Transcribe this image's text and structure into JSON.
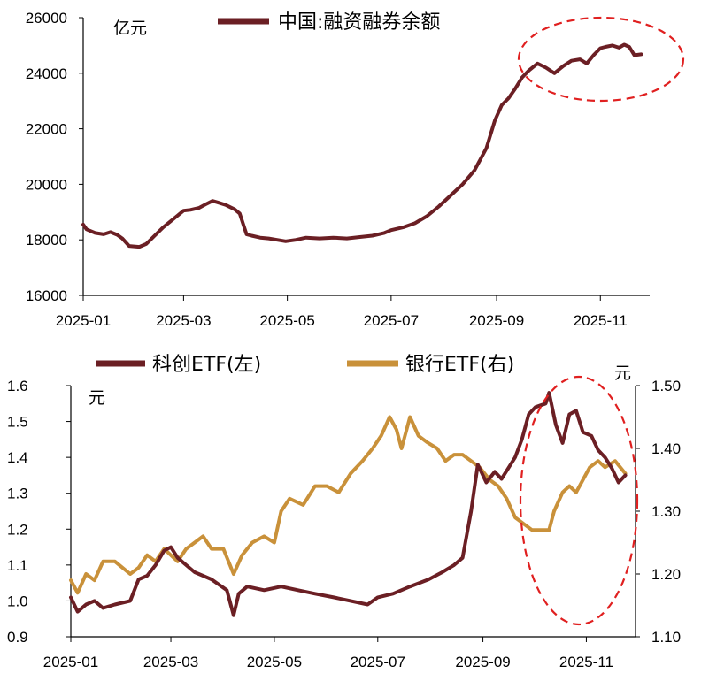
{
  "chart_data": [
    {
      "type": "line",
      "title": "",
      "ylabel_unit": "亿元",
      "ylim": [
        16000,
        26000
      ],
      "yticks": [
        "16000",
        "18000",
        "20000",
        "22000",
        "24000",
        "26000"
      ],
      "x_tick_labels": [
        "2025-01",
        "2025-03",
        "2025-05",
        "2025-07",
        "2025-09",
        "2025-11"
      ],
      "x_domain": [
        "2025-01-01",
        "2025-11-30"
      ],
      "legend_position": "top-center",
      "grid": false,
      "series": [
        {
          "name": "中国:融资融券余额",
          "color": "#6b1f24",
          "points": [
            [
              "2025-01-01",
              18550
            ],
            [
              "2025-01-03",
              18380
            ],
            [
              "2025-01-08",
              18250
            ],
            [
              "2025-01-13",
              18200
            ],
            [
              "2025-01-17",
              18280
            ],
            [
              "2025-01-21",
              18180
            ],
            [
              "2025-01-24",
              18050
            ],
            [
              "2025-01-28",
              17780
            ],
            [
              "2025-02-03",
              17750
            ],
            [
              "2025-02-07",
              17850
            ],
            [
              "2025-02-12",
              18150
            ],
            [
              "2025-02-17",
              18450
            ],
            [
              "2025-02-21",
              18650
            ],
            [
              "2025-02-25",
              18850
            ],
            [
              "2025-03-01",
              19050
            ],
            [
              "2025-03-05",
              19080
            ],
            [
              "2025-03-10",
              19150
            ],
            [
              "2025-03-14",
              19280
            ],
            [
              "2025-03-18",
              19400
            ],
            [
              "2025-03-21",
              19350
            ],
            [
              "2025-03-26",
              19250
            ],
            [
              "2025-03-31",
              19100
            ],
            [
              "2025-04-03",
              18950
            ],
            [
              "2025-04-07",
              18200
            ],
            [
              "2025-04-10",
              18150
            ],
            [
              "2025-04-15",
              18080
            ],
            [
              "2025-04-20",
              18050
            ],
            [
              "2025-04-25",
              18000
            ],
            [
              "2025-04-30",
              17950
            ],
            [
              "2025-05-06",
              18000
            ],
            [
              "2025-05-12",
              18080
            ],
            [
              "2025-05-20",
              18050
            ],
            [
              "2025-05-28",
              18080
            ],
            [
              "2025-06-05",
              18050
            ],
            [
              "2025-06-12",
              18100
            ],
            [
              "2025-06-20",
              18150
            ],
            [
              "2025-06-27",
              18250
            ],
            [
              "2025-07-01",
              18350
            ],
            [
              "2025-07-08",
              18450
            ],
            [
              "2025-07-15",
              18600
            ],
            [
              "2025-07-22",
              18850
            ],
            [
              "2025-07-29",
              19200
            ],
            [
              "2025-08-05",
              19600
            ],
            [
              "2025-08-12",
              20000
            ],
            [
              "2025-08-19",
              20500
            ],
            [
              "2025-08-26",
              21300
            ],
            [
              "2025-08-31",
              22300
            ],
            [
              "2025-09-04",
              22850
            ],
            [
              "2025-09-08",
              23100
            ],
            [
              "2025-09-12",
              23450
            ],
            [
              "2025-09-16",
              23850
            ],
            [
              "2025-09-20",
              24100
            ],
            [
              "2025-09-25",
              24350
            ],
            [
              "2025-09-30",
              24200
            ],
            [
              "2025-10-05",
              24000
            ],
            [
              "2025-10-10",
              24250
            ],
            [
              "2025-10-15",
              24450
            ],
            [
              "2025-10-20",
              24500
            ],
            [
              "2025-10-24",
              24350
            ],
            [
              "2025-10-28",
              24650
            ],
            [
              "2025-11-01",
              24900
            ],
            [
              "2025-11-04",
              24950
            ],
            [
              "2025-11-08",
              25000
            ],
            [
              "2025-11-12",
              24920
            ],
            [
              "2025-11-15",
              25030
            ],
            [
              "2025-11-18",
              24950
            ],
            [
              "2025-11-21",
              24650
            ],
            [
              "2025-11-25",
              24680
            ]
          ]
        }
      ]
    },
    {
      "type": "line",
      "title": "",
      "ylabel_left_unit": "元",
      "ylabel_right_unit": "元",
      "ylim_left": [
        0.9,
        1.6
      ],
      "ylim_right": [
        1.1,
        1.5
      ],
      "yticks_left": [
        "0.9",
        "1.0",
        "1.1",
        "1.2",
        "1.3",
        "1.4",
        "1.5",
        "1.6"
      ],
      "yticks_right": [
        "1.10",
        "1.20",
        "1.30",
        "1.40",
        "1.50"
      ],
      "x_tick_labels": [
        "2025-01",
        "2025-03",
        "2025-05",
        "2025-07",
        "2025-09",
        "2025-11"
      ],
      "x_domain": [
        "2025-01-01",
        "2025-11-30"
      ],
      "legend_position": "top-left",
      "grid": false,
      "series": [
        {
          "name": "科创ETF(左)",
          "axis": "left",
          "color": "#6b1f24",
          "points": [
            [
              "2025-01-01",
              1.01
            ],
            [
              "2025-01-05",
              0.97
            ],
            [
              "2025-01-10",
              0.99
            ],
            [
              "2025-01-15",
              1.0
            ],
            [
              "2025-01-20",
              0.98
            ],
            [
              "2025-01-27",
              0.99
            ],
            [
              "2025-02-05",
              1.0
            ],
            [
              "2025-02-10",
              1.06
            ],
            [
              "2025-02-15",
              1.07
            ],
            [
              "2025-02-20",
              1.1
            ],
            [
              "2025-02-25",
              1.14
            ],
            [
              "2025-03-01",
              1.15
            ],
            [
              "2025-03-05",
              1.12
            ],
            [
              "2025-03-10",
              1.1
            ],
            [
              "2025-03-15",
              1.08
            ],
            [
              "2025-03-20",
              1.07
            ],
            [
              "2025-03-25",
              1.06
            ],
            [
              "2025-03-31",
              1.04
            ],
            [
              "2025-04-03",
              1.03
            ],
            [
              "2025-04-07",
              0.96
            ],
            [
              "2025-04-10",
              1.02
            ],
            [
              "2025-04-15",
              1.04
            ],
            [
              "2025-04-25",
              1.03
            ],
            [
              "2025-05-05",
              1.04
            ],
            [
              "2025-05-15",
              1.03
            ],
            [
              "2025-05-25",
              1.02
            ],
            [
              "2025-06-05",
              1.01
            ],
            [
              "2025-06-15",
              1.0
            ],
            [
              "2025-06-25",
              0.99
            ],
            [
              "2025-07-01",
              1.01
            ],
            [
              "2025-07-10",
              1.02
            ],
            [
              "2025-07-20",
              1.04
            ],
            [
              "2025-07-31",
              1.06
            ],
            [
              "2025-08-08",
              1.08
            ],
            [
              "2025-08-15",
              1.1
            ],
            [
              "2025-08-20",
              1.12
            ],
            [
              "2025-08-25",
              1.25
            ],
            [
              "2025-08-29",
              1.38
            ],
            [
              "2025-09-03",
              1.33
            ],
            [
              "2025-09-08",
              1.36
            ],
            [
              "2025-09-12",
              1.34
            ],
            [
              "2025-09-16",
              1.37
            ],
            [
              "2025-09-20",
              1.4
            ],
            [
              "2025-09-24",
              1.45
            ],
            [
              "2025-09-28",
              1.52
            ],
            [
              "2025-10-02",
              1.54
            ],
            [
              "2025-10-08",
              1.55
            ],
            [
              "2025-10-10",
              1.58
            ],
            [
              "2025-10-14",
              1.49
            ],
            [
              "2025-10-18",
              1.44
            ],
            [
              "2025-10-22",
              1.52
            ],
            [
              "2025-10-26",
              1.53
            ],
            [
              "2025-10-30",
              1.47
            ],
            [
              "2025-11-04",
              1.46
            ],
            [
              "2025-11-08",
              1.42
            ],
            [
              "2025-11-12",
              1.4
            ],
            [
              "2025-11-16",
              1.37
            ],
            [
              "2025-11-20",
              1.33
            ],
            [
              "2025-11-24",
              1.35
            ]
          ]
        },
        {
          "name": "银行ETF(右)",
          "axis": "right",
          "color": "#c9913a",
          "points": [
            [
              "2025-01-01",
              1.19
            ],
            [
              "2025-01-05",
              1.17
            ],
            [
              "2025-01-10",
              1.2
            ],
            [
              "2025-01-15",
              1.19
            ],
            [
              "2025-01-20",
              1.22
            ],
            [
              "2025-01-27",
              1.22
            ],
            [
              "2025-02-05",
              1.2
            ],
            [
              "2025-02-10",
              1.21
            ],
            [
              "2025-02-15",
              1.23
            ],
            [
              "2025-02-20",
              1.22
            ],
            [
              "2025-02-25",
              1.24
            ],
            [
              "2025-03-01",
              1.23
            ],
            [
              "2025-03-05",
              1.22
            ],
            [
              "2025-03-10",
              1.24
            ],
            [
              "2025-03-15",
              1.25
            ],
            [
              "2025-03-20",
              1.26
            ],
            [
              "2025-03-25",
              1.24
            ],
            [
              "2025-04-01",
              1.24
            ],
            [
              "2025-04-07",
              1.2
            ],
            [
              "2025-04-12",
              1.23
            ],
            [
              "2025-04-18",
              1.25
            ],
            [
              "2025-04-25",
              1.26
            ],
            [
              "2025-05-01",
              1.25
            ],
            [
              "2025-05-05",
              1.3
            ],
            [
              "2025-05-10",
              1.32
            ],
            [
              "2025-05-18",
              1.31
            ],
            [
              "2025-05-25",
              1.34
            ],
            [
              "2025-06-01",
              1.34
            ],
            [
              "2025-06-08",
              1.33
            ],
            [
              "2025-06-15",
              1.36
            ],
            [
              "2025-06-22",
              1.38
            ],
            [
              "2025-06-28",
              1.4
            ],
            [
              "2025-07-03",
              1.42
            ],
            [
              "2025-07-08",
              1.45
            ],
            [
              "2025-07-12",
              1.43
            ],
            [
              "2025-07-15",
              1.4
            ],
            [
              "2025-07-20",
              1.45
            ],
            [
              "2025-07-25",
              1.42
            ],
            [
              "2025-07-30",
              1.41
            ],
            [
              "2025-08-05",
              1.4
            ],
            [
              "2025-08-10",
              1.38
            ],
            [
              "2025-08-15",
              1.39
            ],
            [
              "2025-08-20",
              1.39
            ],
            [
              "2025-08-25",
              1.38
            ],
            [
              "2025-08-30",
              1.37
            ],
            [
              "2025-09-05",
              1.35
            ],
            [
              "2025-09-10",
              1.34
            ],
            [
              "2025-09-15",
              1.32
            ],
            [
              "2025-09-20",
              1.29
            ],
            [
              "2025-09-25",
              1.28
            ],
            [
              "2025-09-30",
              1.27
            ],
            [
              "2025-10-05",
              1.27
            ],
            [
              "2025-10-10",
              1.27
            ],
            [
              "2025-10-13",
              1.3
            ],
            [
              "2025-10-18",
              1.33
            ],
            [
              "2025-10-22",
              1.34
            ],
            [
              "2025-10-26",
              1.33
            ],
            [
              "2025-10-30",
              1.35
            ],
            [
              "2025-11-03",
              1.37
            ],
            [
              "2025-11-08",
              1.38
            ],
            [
              "2025-11-12",
              1.37
            ],
            [
              "2025-11-18",
              1.38
            ],
            [
              "2025-11-24",
              1.36
            ]
          ]
        }
      ]
    }
  ],
  "annotation_color": "#e02020"
}
